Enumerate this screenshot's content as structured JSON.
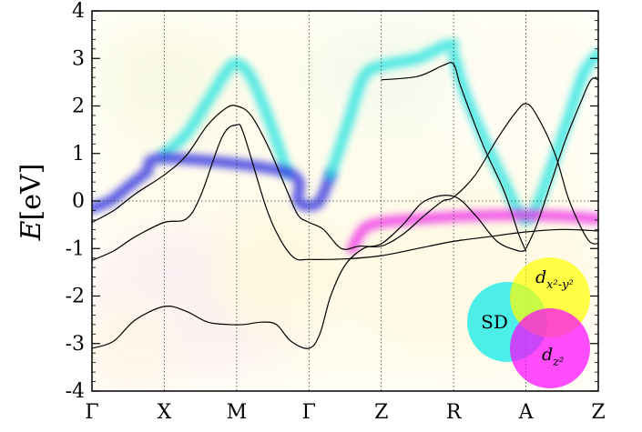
{
  "chart_data": {
    "type": "line",
    "title": "",
    "ylabel_main": "E",
    "ylabel_unit": "[eV]",
    "xlabel": "",
    "ylim": [
      -4,
      4
    ],
    "yticks": [
      4,
      3,
      2,
      1,
      0,
      -1,
      -2,
      -3,
      -4
    ],
    "ytick_labels": [
      "4",
      "3",
      "2",
      "1",
      "0",
      "-1",
      "-2",
      "-3",
      "-4"
    ],
    "kpoint_labels": [
      "Γ",
      "X",
      "M",
      "Γ",
      "Z",
      "R",
      "A",
      "Z"
    ],
    "kpoint_positions": [
      0,
      1,
      2,
      3,
      4,
      5,
      6,
      7
    ],
    "grid": "vertical dotted lines at high-symmetry points; dotted line at E=0",
    "fermi_level": 0,
    "band_lines": [
      {
        "color": "#000000",
        "points": [
          [
            0,
            -0.45
          ],
          [
            0.3,
            -0.2
          ],
          [
            0.6,
            0.15
          ],
          [
            1,
            0.55
          ],
          [
            1.3,
            0.95
          ],
          [
            1.6,
            1.6
          ],
          [
            1.85,
            1.95
          ],
          [
            2,
            2.0
          ],
          [
            2.2,
            1.8
          ],
          [
            2.45,
            1.1
          ],
          [
            2.7,
            0.2
          ],
          [
            2.85,
            -0.3
          ],
          [
            3,
            -0.45
          ],
          [
            3.2,
            -0.6
          ],
          [
            3.45,
            -1.0
          ],
          [
            3.7,
            -0.95
          ],
          [
            4,
            -0.95
          ],
          [
            4.3,
            -0.7
          ],
          [
            4.6,
            -0.3
          ],
          [
            4.85,
            0.0
          ],
          [
            5,
            0.08
          ],
          [
            5.3,
            0.55
          ],
          [
            5.6,
            1.3
          ],
          [
            5.85,
            1.85
          ],
          [
            6,
            2.05
          ],
          [
            6.15,
            1.8
          ],
          [
            6.4,
            1.0
          ],
          [
            6.6,
            0.0
          ],
          [
            6.85,
            -0.8
          ],
          [
            7,
            -0.9
          ]
        ]
      },
      {
        "color": "#000000",
        "points": [
          [
            0,
            -1.25
          ],
          [
            0.3,
            -1.05
          ],
          [
            0.6,
            -0.75
          ],
          [
            1,
            -0.45
          ],
          [
            1.3,
            -0.38
          ],
          [
            1.5,
            0.1
          ],
          [
            1.8,
            1.35
          ],
          [
            2,
            1.6
          ],
          [
            2.1,
            1.4
          ],
          [
            2.4,
            -0.1
          ],
          [
            2.6,
            -0.8
          ],
          [
            2.8,
            -1.2
          ],
          [
            3,
            -1.23
          ],
          [
            3.5,
            -1.22
          ],
          [
            4,
            -1.15
          ],
          [
            4.5,
            -1.0
          ],
          [
            5,
            -0.85
          ],
          [
            5.5,
            -0.75
          ],
          [
            6,
            -0.65
          ],
          [
            6.5,
            -0.6
          ],
          [
            7,
            -0.63
          ]
        ]
      },
      {
        "color": "#000000",
        "points": [
          [
            0,
            -3.1
          ],
          [
            0.3,
            -2.95
          ],
          [
            0.6,
            -2.5
          ],
          [
            1,
            -2.22
          ],
          [
            1.3,
            -2.32
          ],
          [
            1.6,
            -2.55
          ],
          [
            1.9,
            -2.6
          ],
          [
            2.1,
            -2.6
          ],
          [
            2.35,
            -2.55
          ],
          [
            2.55,
            -2.6
          ],
          [
            2.75,
            -2.95
          ],
          [
            3,
            -3.1
          ],
          [
            3.15,
            -2.8
          ],
          [
            3.3,
            -2.0
          ],
          [
            3.5,
            -1.35
          ],
          [
            3.75,
            -1.0
          ],
          [
            4,
            -0.9
          ],
          [
            4.3,
            -0.5
          ],
          [
            4.6,
            -0.0
          ],
          [
            5,
            0.1
          ],
          [
            5.3,
            -0.3
          ],
          [
            5.6,
            -0.85
          ],
          [
            5.9,
            -1.05
          ],
          [
            6,
            -1.03
          ]
        ]
      },
      {
        "color": "#000000",
        "points": [
          [
            6,
            -1.0
          ],
          [
            6.15,
            -0.5
          ],
          [
            6.35,
            0.4
          ],
          [
            6.55,
            1.3
          ],
          [
            6.75,
            2.05
          ],
          [
            6.9,
            2.55
          ],
          [
            7,
            2.55
          ]
        ]
      },
      {
        "color": "#000000",
        "points": [
          [
            4,
            2.55
          ],
          [
            4.5,
            2.62
          ],
          [
            4.85,
            2.85
          ],
          [
            5,
            2.88
          ],
          [
            5.1,
            2.4
          ],
          [
            5.4,
            1.2
          ],
          [
            5.7,
            0.2
          ],
          [
            5.9,
            -0.7
          ],
          [
            6,
            -1.05
          ]
        ]
      }
    ],
    "projected_bands": [
      {
        "color": "#1fe3e0",
        "points": [
          [
            1,
            1.0
          ],
          [
            1.3,
            1.4
          ],
          [
            1.6,
            2.1
          ],
          [
            1.85,
            2.7
          ],
          [
            2,
            2.9
          ],
          [
            2.2,
            2.6
          ],
          [
            2.45,
            1.7
          ],
          [
            2.7,
            0.6
          ]
        ]
      },
      {
        "color": "#2a2ae0",
        "points": [
          [
            0,
            -0.15
          ],
          [
            0.25,
            0.0
          ],
          [
            0.5,
            0.3
          ],
          [
            0.75,
            0.6
          ],
          [
            1,
            0.9
          ],
          [
            2.7,
            0.6
          ],
          [
            2.85,
            0.0
          ],
          [
            3,
            -0.1
          ],
          [
            3.15,
            0.0
          ],
          [
            3.3,
            0.55
          ]
        ]
      },
      {
        "color": "#1fe3e0",
        "points": [
          [
            3.3,
            0.55
          ],
          [
            3.55,
            1.7
          ],
          [
            3.75,
            2.6
          ],
          [
            4,
            2.85
          ],
          [
            4.5,
            3.0
          ],
          [
            4.85,
            3.25
          ],
          [
            5,
            3.3
          ]
        ]
      },
      {
        "color": "#1fe3e0",
        "points": [
          [
            5,
            3.1
          ],
          [
            5.15,
            2.3
          ],
          [
            5.45,
            1.2
          ],
          [
            5.7,
            0.4
          ],
          [
            5.85,
            -0.1
          ],
          [
            6,
            -0.4
          ],
          [
            6.15,
            -0.1
          ],
          [
            6.35,
            0.7
          ],
          [
            6.6,
            1.8
          ],
          [
            6.8,
            2.7
          ],
          [
            7,
            3.1
          ]
        ]
      },
      {
        "color": "#ee2ee8",
        "points": [
          [
            3.6,
            -1.0
          ],
          [
            3.75,
            -0.6
          ],
          [
            4,
            -0.45
          ],
          [
            4.5,
            -0.38
          ],
          [
            5,
            -0.33
          ],
          [
            5.5,
            -0.3
          ],
          [
            6,
            -0.3
          ],
          [
            6.5,
            -0.32
          ],
          [
            7,
            -0.38
          ]
        ]
      }
    ],
    "legend": {
      "placement": "bottom-right",
      "type": "venn",
      "entries": [
        {
          "label": "SD",
          "color": "#00e8e8"
        },
        {
          "label_base": "d",
          "label_sub": "x²-y²",
          "color": "#ffff00"
        },
        {
          "label_base": "d",
          "label_sub": "z²",
          "color": "#ff00ff"
        }
      ]
    }
  }
}
